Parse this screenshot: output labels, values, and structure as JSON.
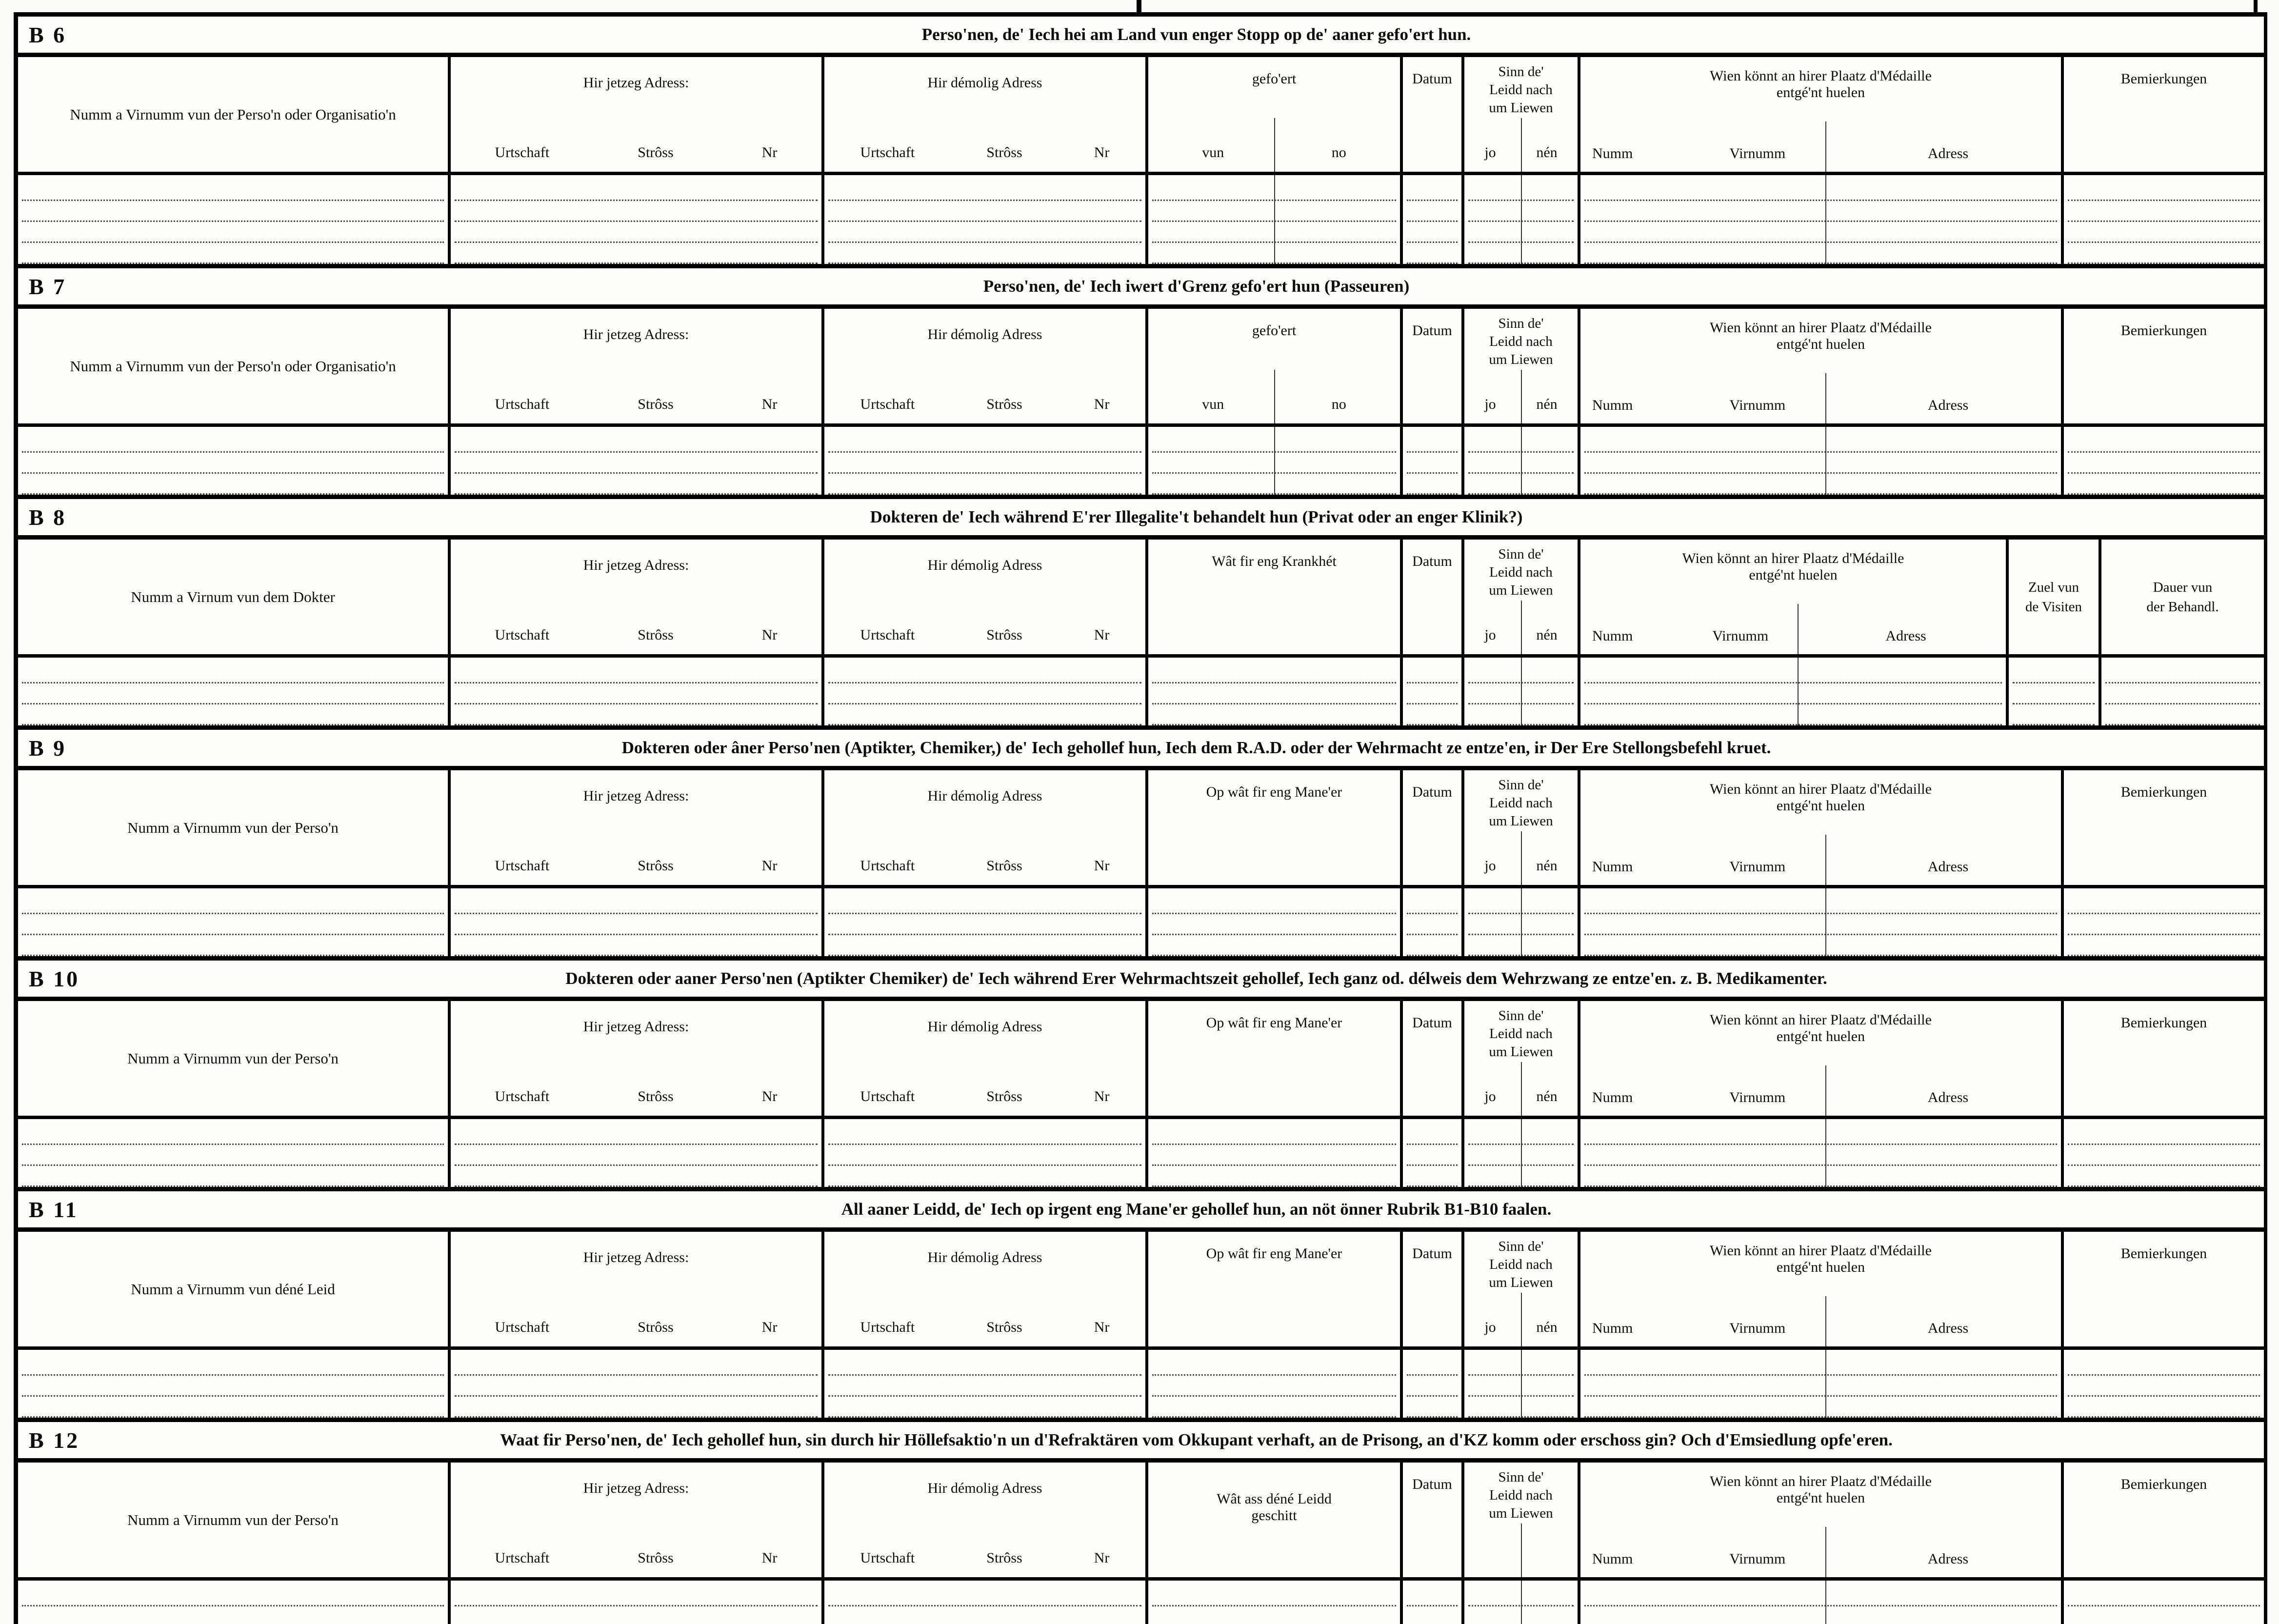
{
  "common": {
    "jetzeg": "Hir jetzeg Adress:",
    "demolig": "Hir démolig Adress",
    "urtschaft": "Urtschaft",
    "stross": "Strôss",
    "nr": "Nr",
    "gefoert": "gefo'ert",
    "vun": "vun",
    "no": "no",
    "datum": "Datum",
    "sinn1": "Sinn de'",
    "sinn2": "Leidd nach",
    "sinn3": "um Liewen",
    "jo": "jo",
    "nen": "nén",
    "wien1": "Wien könnt an hirer Plaatz d'Médaille",
    "wien2": "entgé'nt huelen",
    "numm": "Numm",
    "virnumm": "Virnumm",
    "adress": "Adress",
    "bemierkungen": "Bemierkungen",
    "visiten1": "Zuel vun",
    "visiten2": "de Visiten",
    "dauer1": "Dauer vun",
    "dauer2": "der Behandl."
  },
  "sections": [
    {
      "id": "B 6",
      "title": "Perso'nen, de' Iech hei am Land vun enger Stopp op de' aaner gefo'ert hun.",
      "col1": "Numm a Virnumm vun der Perso'n oder Organisatio'n",
      "col4": "gefo'ert"
    },
    {
      "id": "B 7",
      "title": "Perso'nen, de' Iech iwert d'Grenz gefo'ert hun (Passeuren)",
      "col1": "Numm a Virnumm vun der Perso'n oder Organisatio'n",
      "col4": "gefo'ert"
    },
    {
      "id": "B 8",
      "title": "Dokteren de' Iech während E'rer Illegalite't behandelt hun (Privat oder an enger Klinik?)",
      "col1": "Numm a Virnum vun dem Dokter",
      "col4": "Wât fir eng Krankhét"
    },
    {
      "id": "B 9",
      "title": "Dokteren oder âner Perso'nen (Aptikter, Chemiker,) de' Iech gehollef hun, Iech dem R.A.D. oder der Wehrmacht ze entze'en, ir Der Ere Stellongsbefehl kruet.",
      "col1": "Numm a Virnumm vun der Perso'n",
      "col4": "Op wât fir eng Mane'er"
    },
    {
      "id": "B 10",
      "title": "Dokteren oder aaner Perso'nen (Aptikter Chemiker) de' Iech während Erer Wehrmachtszeit gehollef, Iech ganz od. délweis dem Wehrzwang ze entze'en. z. B. Medikamenter.",
      "col1": "Numm a Virnumm vun der Perso'n",
      "col4": "Op wât fir eng Mane'er"
    },
    {
      "id": "B 11",
      "title": "All aaner Leidd, de' Iech op irgent eng Mane'er gehollef hun, an nöt önner Rubrik B1-B10 faalen.",
      "col1": "Numm a Virnumm vun déné Leid",
      "col4": "Op wât fir eng Mane'er"
    },
    {
      "id": "B 12",
      "title": "Waat fir Perso'nen, de' Iech gehollef hun, sin durch hir Höllefsaktio'n un d'Refraktären vom Okkupant verhaft, an de Prisong, an d'KZ komm oder erschoss gin? Och d'Emsiedlung opfe'eren.",
      "col1": "Numm a Virnumm vun der Perso'n",
      "col4a": "Wât ass déné Leidd",
      "col4b": "geschitt"
    }
  ]
}
